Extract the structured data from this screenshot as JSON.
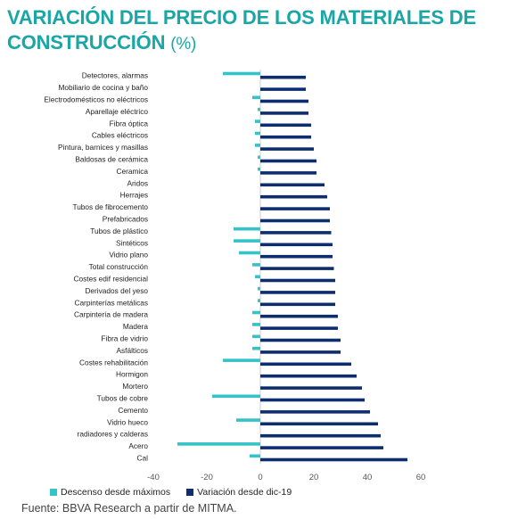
{
  "title": {
    "main": "VARIACIÓN DEL PRECIO DE LOS MATERIALES DE CONSTRUCCIÓN",
    "unit": "(%)"
  },
  "source": "Fuente: BBVA Research a partir de MITMA.",
  "colors": {
    "descenso": "#33c3c8",
    "variacion": "#0d2d6e",
    "axis": "#cfcfcf"
  },
  "chart_data": {
    "type": "bar",
    "orientation": "horizontal",
    "categories": [
      "Detectores, alarmas",
      "Mobiliario de cocina y baño",
      "Electrodomésticos no eléctricos",
      "Aparellaje eléctrico",
      "Fibra óptica",
      "Cables eléctricos",
      "Pintura, barnices y masillas",
      "Baldosas de cerámica",
      "Ceramica",
      "Aridos",
      "Herrajes",
      "Tubos de fibrocemento",
      "Prefabricados",
      "Tubos de plástico",
      "Sintéticos",
      "Vidrio plano",
      "Total construcción",
      "Costes edif residencial",
      "Derivados del yeso",
      "Carpinterías metálicas",
      "Carpintería de madera",
      "Madera",
      "Fibra de vidrio",
      "Asfálticos",
      "Costes rehabilitación",
      "Hormigon",
      "Mortero",
      "Tubos de cobre",
      "Cemento",
      "Vidrio hueco",
      "radiadores y calderas",
      "Acero",
      "Cal"
    ],
    "series": [
      {
        "name": "Descenso desde máximos",
        "values": [
          -14,
          0,
          -3,
          -1,
          -2,
          -2,
          -2,
          -1,
          -1,
          0,
          0,
          0,
          0,
          -10,
          -10,
          -8,
          -3,
          -2,
          -1,
          -1,
          -3,
          -3,
          -3,
          -3,
          -14,
          0,
          0,
          -18,
          0,
          -9,
          0,
          -31,
          -4
        ]
      },
      {
        "name": "Variación desde dic-19",
        "values": [
          17,
          17,
          18,
          18,
          19,
          19,
          20,
          21,
          21,
          24,
          25,
          26,
          26,
          26.5,
          27,
          27,
          27.5,
          28,
          28,
          28,
          29,
          29,
          30,
          30,
          34,
          36,
          38,
          39,
          41,
          44,
          45,
          46,
          55
        ]
      }
    ],
    "xticks": [
      -40,
      -20,
      0,
      20,
      40,
      60
    ],
    "xlim": [
      -40,
      60
    ],
    "grid": false,
    "legend": "bottom-left"
  }
}
